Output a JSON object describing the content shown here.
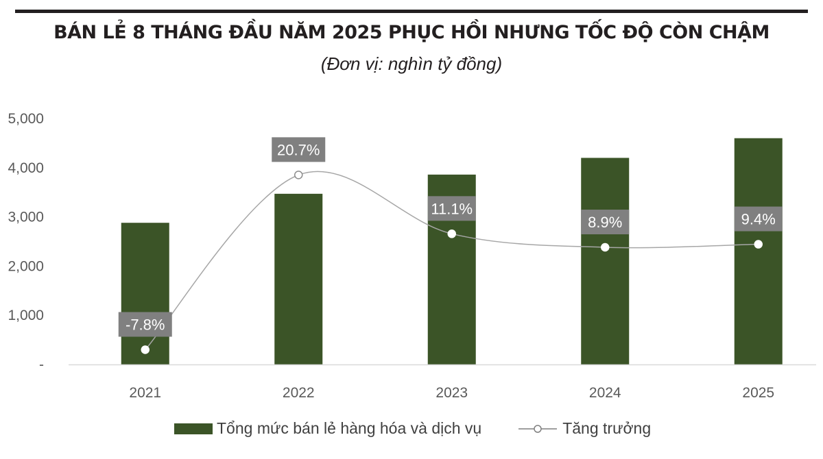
{
  "chart_data": {
    "type": "bar",
    "title": "BÁN LẺ 8 THÁNG ĐẦU NĂM 2025 PHỤC HỒI NHƯNG TỐC ĐỘ CÒN CHẬM",
    "subtitle": "(Đơn vị: nghìn tỷ đồng)",
    "categories": [
      "2021",
      "2022",
      "2023",
      "2024",
      "2025"
    ],
    "ylim": [
      0,
      5000
    ],
    "yticks": [
      0,
      1000,
      2000,
      3000,
      4000,
      5000
    ],
    "ytick_labels": [
      "-",
      "1,000",
      "2,000",
      "3,000",
      "4,000",
      "5,000"
    ],
    "secondary_ylim": [
      -10.2,
      29.9
    ],
    "grid": false,
    "legend_position": "bottom",
    "series": [
      {
        "name": "Tổng mức bán lẻ hàng hóa và dịch vụ",
        "type": "bar",
        "color": "#3b5427",
        "values": [
          2880,
          3470,
          3860,
          4200,
          4600
        ]
      },
      {
        "name": "Tăng trưởng",
        "type": "line",
        "axis": "secondary",
        "color": "#a6a6a6",
        "values": [
          -7.8,
          20.7,
          11.1,
          8.9,
          9.4
        ],
        "labels": [
          "-7.8%",
          "20.7%",
          "11.1%",
          "8.9%",
          "9.4%"
        ]
      }
    ]
  }
}
